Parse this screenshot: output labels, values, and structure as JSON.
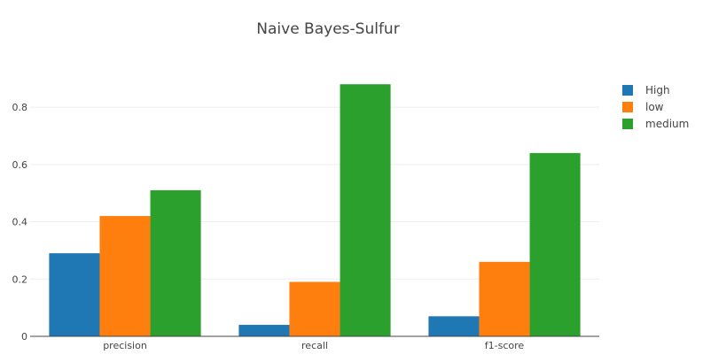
{
  "chart_data": {
    "type": "bar",
    "title": "Naive Bayes-Sulfur",
    "xlabel": "",
    "ylabel": "",
    "categories": [
      "precision",
      "recall",
      "f1-score"
    ],
    "series": [
      {
        "name": "High",
        "color": "#1f77b4",
        "values": [
          0.29,
          0.04,
          0.07
        ]
      },
      {
        "name": "low",
        "color": "#ff7f0e",
        "values": [
          0.42,
          0.19,
          0.26
        ]
      },
      {
        "name": "medium",
        "color": "#2ca02c",
        "values": [
          0.51,
          0.88,
          0.64
        ]
      }
    ],
    "y_ticks": [
      0,
      0.2,
      0.4,
      0.6,
      0.8
    ],
    "y_tick_labels": [
      "0",
      "0.2",
      "0.4",
      "0.6",
      "0.8"
    ],
    "ylim": [
      0,
      0.927
    ],
    "grid": true,
    "legend_position": "top-right"
  }
}
